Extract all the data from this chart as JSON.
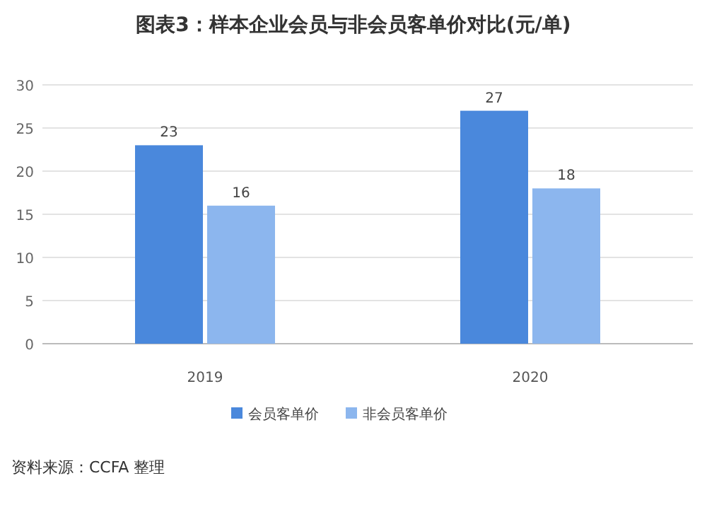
{
  "chart_data": {
    "type": "bar",
    "title": "图表3：样本企业会员与非会员客单价对比(元/单)",
    "categories": [
      "2019",
      "2020"
    ],
    "series": [
      {
        "name": "会员客单价",
        "color": "#4a88dc",
        "values": [
          23,
          27
        ]
      },
      {
        "name": "非会员客单价",
        "color": "#8cb6ee",
        "values": [
          16,
          18
        ]
      }
    ],
    "ylim": [
      0,
      30
    ],
    "yticks": [
      0,
      5,
      10,
      15,
      20,
      25,
      30
    ],
    "grid": "y",
    "legend": "bottom",
    "data_labels": true,
    "annotations": [
      "资料来源：CCFA 整理"
    ]
  }
}
